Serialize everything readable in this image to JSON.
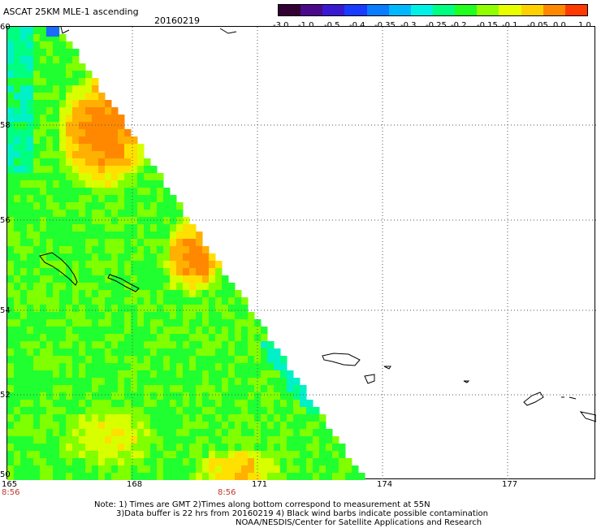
{
  "title": "ASCAT 25KM MLE-1 ascending",
  "date": "20160219",
  "colorbar": {
    "labels": [
      "-3.0",
      "-1.0",
      "-0.5",
      "-0.4",
      "-0.35",
      "-0.3",
      "-0.25",
      "-0.2",
      "-0.15",
      "-0.1",
      "-0.05",
      "0.0",
      "1.0"
    ],
    "colors": [
      "#330033",
      "#4a0a8a",
      "#3a1ad0",
      "#1a3cff",
      "#0a7cff",
      "#00b8ff",
      "#00f0e6",
      "#00ff80",
      "#20ff20",
      "#90ff00",
      "#e8ff00",
      "#ffd000",
      "#ff8800",
      "#ff3a00"
    ]
  },
  "map": {
    "lon_range": [
      165,
      179
    ],
    "lat_range": [
      50,
      60
    ],
    "lon_ticks": [
      "165",
      "168",
      "171",
      "174",
      "177"
    ],
    "lat_ticks": [
      "60",
      "58",
      "56",
      "54",
      "52",
      "50"
    ],
    "grid": true,
    "time_labels": [
      "8:56",
      "8:56"
    ]
  },
  "notes": {
    "line1": "Note: 1) Times are GMT 2)Times along bottom correspond to measurement at 55N",
    "line2": "3)Data buffer is 22 hrs from 20160219 4) Black wind barbs indicate possible contamination",
    "line3": "NOAA/NESDIS/Center for Satellite Applications and Research"
  }
}
